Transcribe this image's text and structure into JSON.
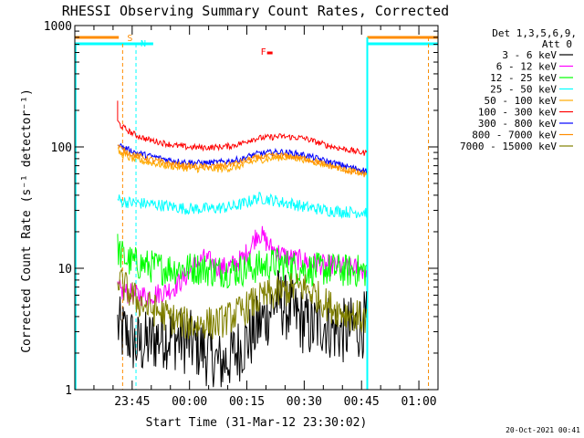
{
  "chart_data": {
    "type": "line",
    "title": "RHESSI Observing Summary Count Rates, Corrected",
    "xlabel": "Start Time (31-Mar-12 23:30:02)",
    "ylabel": "Corrected Count Rate (s⁻¹ detector⁻¹)",
    "yscale": "log",
    "ylim": [
      1,
      1000
    ],
    "xlim_minutes": [
      0,
      95
    ],
    "ytick_labels": [
      {
        "value": 1,
        "label": "1"
      },
      {
        "value": 10,
        "label": "10"
      },
      {
        "value": 100,
        "label": "100"
      },
      {
        "value": 1000,
        "label": "1000"
      }
    ],
    "xtick_labels": [
      {
        "minute": 15,
        "label": "23:45"
      },
      {
        "minute": 30,
        "label": "00:00"
      },
      {
        "minute": 45,
        "label": "00:15"
      },
      {
        "minute": 60,
        "label": "00:30"
      },
      {
        "minute": 75,
        "label": "00:45"
      },
      {
        "minute": 90,
        "label": "01:00"
      }
    ],
    "legend_header": [
      "Det 1,3,5,6,9,",
      "Att 0"
    ],
    "series": [
      {
        "name": "3 - 6 keV",
        "color": "#000000",
        "t": [
          11,
          12,
          14,
          16,
          19,
          23,
          26,
          29,
          33,
          36,
          38,
          42,
          46,
          50,
          53,
          56,
          59,
          62,
          65,
          68,
          71,
          73,
          76
        ],
        "y": [
          3.5,
          3,
          2.8,
          2.3,
          2.4,
          2.8,
          2.7,
          2.5,
          2.2,
          1.8,
          1.6,
          2,
          2.7,
          4,
          5.5,
          4.5,
          3.8,
          3.2,
          3.6,
          3.1,
          3,
          3.2,
          3.5
        ]
      },
      {
        "name": "6 - 12 keV",
        "color": "#ff00ff",
        "t": [
          11,
          12,
          14,
          16,
          19,
          23,
          26,
          29,
          32,
          34,
          36,
          38,
          41,
          44,
          46,
          48,
          51,
          54,
          57,
          60,
          63,
          66,
          69,
          72,
          74,
          76
        ],
        "y": [
          7,
          6.5,
          6.2,
          6,
          6,
          6.3,
          7,
          8.5,
          11,
          12,
          11,
          10,
          10.5,
          12,
          15,
          20,
          15,
          13,
          12,
          11.5,
          11,
          10.5,
          10.5,
          10,
          10,
          9.5
        ]
      },
      {
        "name": "12 - 25 keV",
        "color": "#00ff00",
        "t": [
          11,
          12,
          14,
          16,
          19,
          23,
          26,
          29,
          33,
          36,
          38,
          42,
          46,
          50,
          53,
          56,
          59,
          62,
          65,
          68,
          71,
          73,
          76
        ],
        "y": [
          15,
          13,
          11.5,
          11,
          10.5,
          10,
          10,
          10,
          10,
          9.5,
          9.5,
          9.5,
          10,
          10.5,
          11,
          10.5,
          10,
          9.8,
          9.8,
          9.8,
          9.5,
          9.5,
          9.5
        ]
      },
      {
        "name": "25 - 50 keV",
        "color": "#00ffff",
        "t": [
          11,
          12,
          14,
          16,
          19,
          23,
          26,
          29,
          32,
          34,
          36,
          38,
          41,
          44,
          46,
          48,
          51,
          54,
          57,
          60,
          63,
          66,
          69,
          72,
          74,
          76
        ],
        "y": [
          38,
          36,
          35,
          34.5,
          34,
          33,
          32,
          31,
          31,
          31,
          31,
          31.5,
          32,
          34,
          36,
          38,
          37,
          35,
          34,
          32,
          31,
          30,
          29.5,
          29,
          29,
          29
        ]
      },
      {
        "name": "50 - 100 keV",
        "color": "#ffaa00",
        "t": [
          11,
          12,
          14,
          16,
          19,
          23,
          26,
          29,
          32,
          34,
          36,
          38,
          41,
          44,
          46,
          48,
          51,
          54,
          57,
          60,
          63,
          66,
          69,
          72,
          74,
          76
        ],
        "y": [
          95,
          88,
          82,
          78,
          75,
          71,
          69,
          67,
          66,
          66,
          66,
          66,
          67,
          70,
          75,
          78,
          80,
          82,
          82,
          79,
          75,
          71,
          68,
          64,
          62,
          60
        ]
      },
      {
        "name": "100 - 300 keV",
        "color": "#ff0000",
        "t": [
          11,
          12,
          14,
          16,
          19,
          23,
          26,
          29,
          32,
          34,
          36,
          38,
          41,
          44,
          46,
          48,
          51,
          54,
          57,
          60,
          63,
          66,
          69,
          72,
          74,
          76
        ],
        "y": [
          165,
          150,
          135,
          125,
          115,
          108,
          103,
          100,
          99,
          99,
          99,
          100,
          102,
          108,
          115,
          118,
          120,
          122,
          120,
          118,
          110,
          103,
          98,
          94,
          91,
          89
        ]
      },
      {
        "name": "300 - 800 keV",
        "color": "#0000ff",
        "t": [
          11,
          12,
          14,
          16,
          19,
          23,
          26,
          29,
          32,
          34,
          36,
          38,
          41,
          44,
          46,
          48,
          51,
          54,
          57,
          60,
          63,
          66,
          69,
          72,
          74,
          76
        ],
        "y": [
          110,
          102,
          95,
          90,
          85,
          80,
          77,
          75,
          74,
          74,
          74,
          75,
          77,
          80,
          85,
          88,
          90,
          91,
          89,
          86,
          81,
          76,
          72,
          68,
          66,
          64
        ]
      },
      {
        "name": "800 - 7000 keV",
        "color": "#ff8c00",
        "t": [
          11,
          12,
          14,
          16,
          19,
          23,
          26,
          29,
          32,
          34,
          36,
          38,
          41,
          44,
          46,
          48,
          51,
          54,
          57,
          60,
          63,
          66,
          69,
          72,
          74,
          76
        ],
        "y": [
          105,
          97,
          90,
          85,
          80,
          75,
          72,
          70,
          69,
          69,
          69,
          70,
          72,
          76,
          80,
          82,
          84,
          85,
          83,
          80,
          76,
          71,
          67,
          63,
          61,
          59
        ]
      },
      {
        "name": "7000 - 15000 keV",
        "color": "#808000",
        "t": [
          11,
          12,
          14,
          16,
          19,
          23,
          26,
          29,
          32,
          34,
          36,
          38,
          41,
          44,
          46,
          48,
          51,
          54,
          57,
          60,
          63,
          66,
          69,
          72,
          74,
          76
        ],
        "y": [
          8.5,
          7.5,
          6.5,
          5.5,
          4.8,
          4.2,
          3.8,
          3.5,
          3.4,
          3.6,
          3.5,
          3.6,
          4,
          4.5,
          5,
          5.5,
          6,
          6.3,
          6.8,
          7,
          6,
          5,
          4.5,
          4.2,
          4,
          3.8
        ]
      }
    ],
    "annotations": [
      {
        "label": "S",
        "color": "#ff8c00",
        "minute": 12.5
      },
      {
        "label": "N",
        "color": "#00ffff",
        "minute": 16
      },
      {
        "label": "F",
        "color": "#ff0000",
        "minute": 51
      }
    ]
  },
  "footer": {
    "timestamp": "20-Oct-2021 00:41"
  }
}
